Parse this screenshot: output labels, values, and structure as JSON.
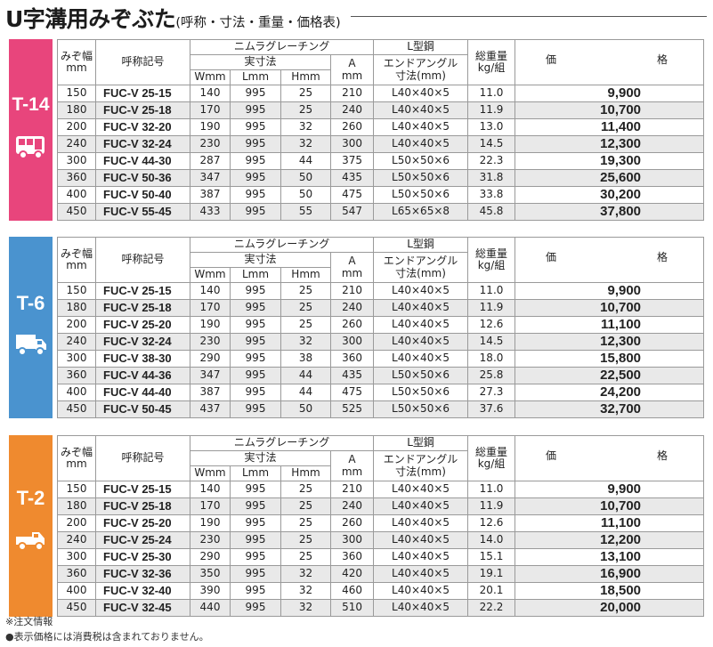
{
  "title": {
    "main": "U字溝用みぞぶた",
    "sub": "(呼称・寸法・重量・価格表)"
  },
  "headers": {
    "width": [
      "みぞ幅",
      "mm"
    ],
    "code": "呼称記号",
    "grating": "ニムラグレーチング",
    "dims": "実寸法",
    "w": "Wmm",
    "l": "Lmm",
    "h": "Hmm",
    "a": [
      "A",
      "mm"
    ],
    "steel": "L型鋼",
    "angle": [
      "エンドアングル",
      "寸法(mm)"
    ],
    "weight": [
      "総重量",
      "kg/組"
    ],
    "price": [
      "価",
      "格"
    ]
  },
  "colors": {
    "t14": "#e8457c",
    "t6": "#4a93cf",
    "t2": "#ef8a2f"
  },
  "blocks": [
    {
      "label": "T-14",
      "icon": "bus-icon",
      "rows": [
        [
          "150",
          "FUC-V 25-15",
          "140",
          "995",
          "25",
          "210",
          "L40×40×5",
          "11.0",
          "9,900"
        ],
        [
          "180",
          "FUC-V 25-18",
          "170",
          "995",
          "25",
          "240",
          "L40×40×5",
          "11.9",
          "10,700"
        ],
        [
          "200",
          "FUC-V 32-20",
          "190",
          "995",
          "32",
          "260",
          "L40×40×5",
          "13.0",
          "11,400"
        ],
        [
          "240",
          "FUC-V 32-24",
          "230",
          "995",
          "32",
          "300",
          "L40×40×5",
          "14.5",
          "12,300"
        ],
        [
          "300",
          "FUC-V 44-30",
          "287",
          "995",
          "44",
          "375",
          "L50×50×6",
          "22.3",
          "19,300"
        ],
        [
          "360",
          "FUC-V 50-36",
          "347",
          "995",
          "50",
          "435",
          "L50×50×6",
          "31.8",
          "25,600"
        ],
        [
          "400",
          "FUC-V 50-40",
          "387",
          "995",
          "50",
          "475",
          "L50×50×6",
          "33.8",
          "30,200"
        ],
        [
          "450",
          "FUC-V 55-45",
          "433",
          "995",
          "55",
          "547",
          "L65×65×8",
          "45.8",
          "37,800"
        ]
      ]
    },
    {
      "label": "T-6",
      "icon": "truck-icon",
      "rows": [
        [
          "150",
          "FUC-V 25-15",
          "140",
          "995",
          "25",
          "210",
          "L40×40×5",
          "11.0",
          "9,900"
        ],
        [
          "180",
          "FUC-V 25-18",
          "170",
          "995",
          "25",
          "240",
          "L40×40×5",
          "11.9",
          "10,700"
        ],
        [
          "200",
          "FUC-V 25-20",
          "190",
          "995",
          "25",
          "260",
          "L40×40×5",
          "12.6",
          "11,100"
        ],
        [
          "240",
          "FUC-V 32-24",
          "230",
          "995",
          "32",
          "300",
          "L40×40×5",
          "14.5",
          "12,300"
        ],
        [
          "300",
          "FUC-V 38-30",
          "290",
          "995",
          "38",
          "360",
          "L40×40×5",
          "18.0",
          "15,800"
        ],
        [
          "360",
          "FUC-V 44-36",
          "347",
          "995",
          "44",
          "435",
          "L50×50×6",
          "25.8",
          "22,500"
        ],
        [
          "400",
          "FUC-V 44-40",
          "387",
          "995",
          "44",
          "475",
          "L50×50×6",
          "27.3",
          "24,200"
        ],
        [
          "450",
          "FUC-V 50-45",
          "437",
          "995",
          "50",
          "525",
          "L50×50×6",
          "37.6",
          "32,700"
        ]
      ]
    },
    {
      "label": "T-2",
      "icon": "pickup-truck-icon",
      "rows": [
        [
          "150",
          "FUC-V 25-15",
          "140",
          "995",
          "25",
          "210",
          "L40×40×5",
          "11.0",
          "9,900"
        ],
        [
          "180",
          "FUC-V 25-18",
          "170",
          "995",
          "25",
          "240",
          "L40×40×5",
          "11.9",
          "10,700"
        ],
        [
          "200",
          "FUC-V 25-20",
          "190",
          "995",
          "25",
          "260",
          "L40×40×5",
          "12.6",
          "11,100"
        ],
        [
          "240",
          "FUC-V 25-24",
          "230",
          "995",
          "25",
          "300",
          "L40×40×5",
          "14.0",
          "12,200"
        ],
        [
          "300",
          "FUC-V 25-30",
          "290",
          "995",
          "25",
          "360",
          "L40×40×5",
          "15.1",
          "13,100"
        ],
        [
          "360",
          "FUC-V 32-36",
          "350",
          "995",
          "32",
          "420",
          "L40×40×5",
          "19.1",
          "16,900"
        ],
        [
          "400",
          "FUC-V 32-40",
          "390",
          "995",
          "32",
          "460",
          "L40×40×5",
          "20.1",
          "18,500"
        ],
        [
          "450",
          "FUC-V 32-45",
          "440",
          "995",
          "32",
          "510",
          "L40×40×5",
          "22.2",
          "20,000"
        ]
      ]
    }
  ],
  "notes": [
    "※注文情報",
    "●表示価格には消費税は含まれておりません。"
  ]
}
